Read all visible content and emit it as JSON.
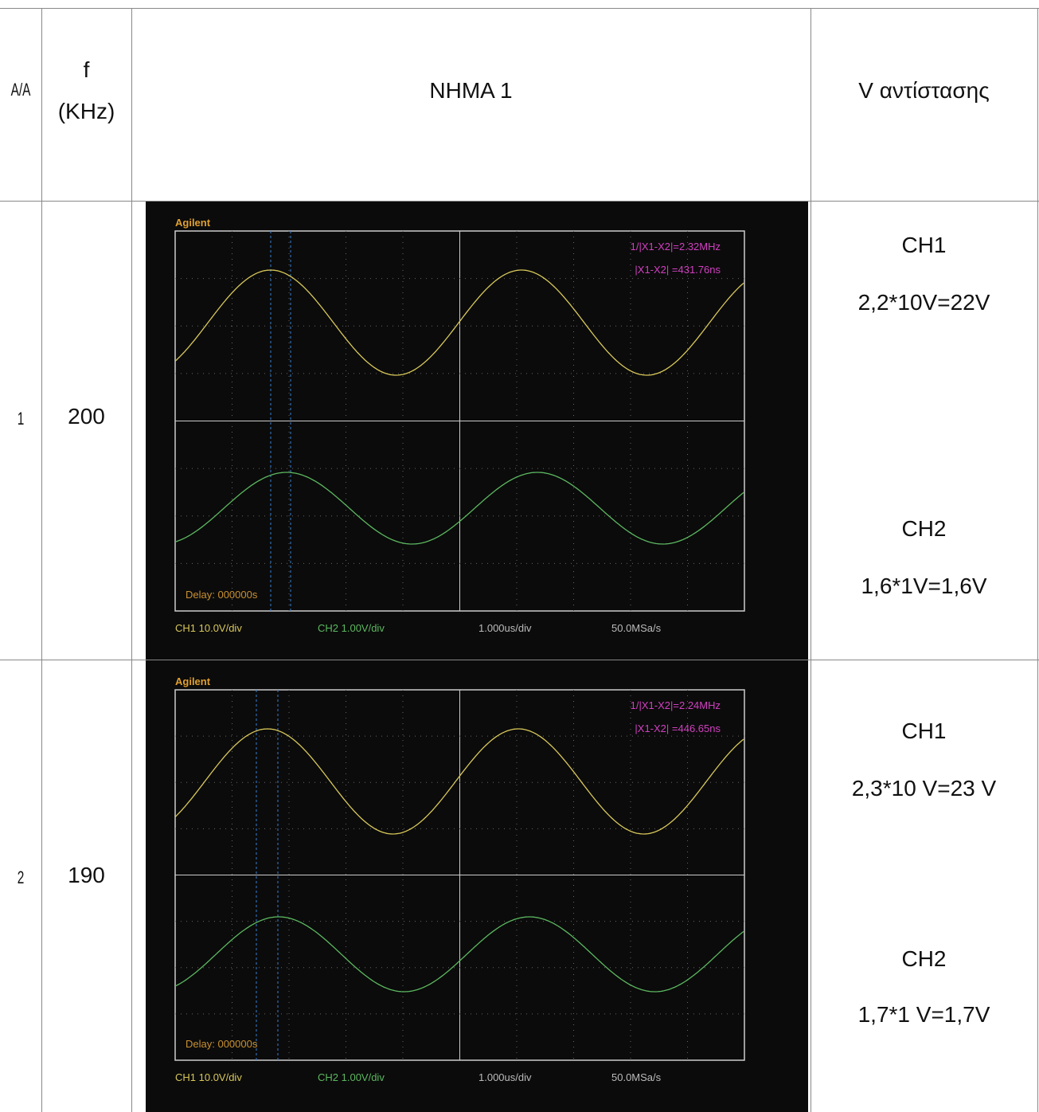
{
  "table": {
    "header": [
      "A/A",
      [
        "f",
        "(KHz)"
      ],
      "NHMA 1",
      "V αντίστασης"
    ],
    "rows": [
      {
        "index": "1",
        "f": "200",
        "scope": {
          "brand": "Agilent",
          "freq": "1/|X1-X2|=2.32MHz",
          "delta": "|X1-X2|  =431.76ns",
          "delay": "Delay: 000000s",
          "ch1": "CH1 10.0V/div",
          "ch2": "CH2 1.00V/div",
          "time": "1.000us/div",
          "rate": "50.0MSa/s"
        },
        "v": [
          "CH1",
          "2,2*10V=22V",
          "CH2",
          "1,6*1V=1,6V"
        ]
      },
      {
        "index": "2",
        "f": "190",
        "scope": {
          "brand": "Agilent",
          "freq": "1/|X1-X2|=2.24MHz",
          "delta": "|X1-X2|  =446.65ns",
          "delay": "Delay: 000000s",
          "ch1": "CH1 10.0V/div",
          "ch2": "CH2 1.00V/div",
          "time": "1.000us/div",
          "rate": "50.0MSa/s"
        },
        "v": [
          "CH1",
          "2,3*10 V=23 V",
          "CH2",
          "1,7*1 V=1,7V"
        ]
      }
    ]
  }
}
